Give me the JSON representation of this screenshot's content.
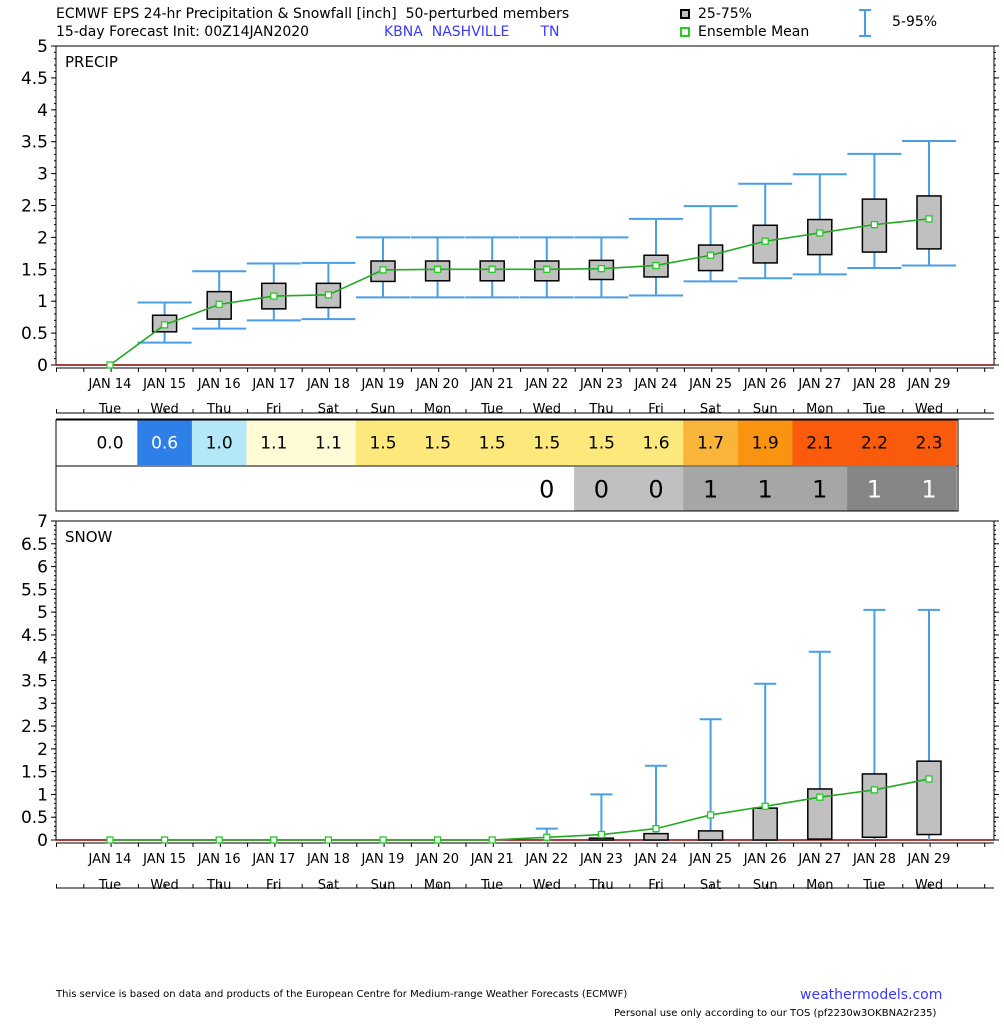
{
  "header": {
    "line1": "ECMWF EPS 24-hr Precipitation & Snowfall [inch]  50-perturbed members",
    "line2_prefix": "15-day Forecast Init: 00Z14JAN2020",
    "station": "KBNA  NASHVILLE       TN",
    "legend_box_label": "25-75%",
    "legend_mean_label": "Ensemble Mean",
    "legend_whisker_label": "5-95%"
  },
  "colors": {
    "whisker": "#4a9ee6",
    "mean": "#22aa22",
    "box_fill": "#c0c0c0",
    "box_stroke": "#000000"
  },
  "dates": [
    "JAN 14",
    "JAN 15",
    "JAN 16",
    "JAN 17",
    "JAN 18",
    "JAN 19",
    "JAN 20",
    "JAN 21",
    "JAN 22",
    "JAN 23",
    "JAN 24",
    "JAN 25",
    "JAN 26",
    "JAN 27",
    "JAN 28",
    "JAN 29"
  ],
  "days": [
    "Tue",
    "Wed",
    "Thu",
    "Fri",
    "Sat",
    "Sun",
    "Mon",
    "Tue",
    "Wed",
    "Thu",
    "Fri",
    "Sat",
    "Sun",
    "Mon",
    "Tue",
    "Wed"
  ],
  "chart_data": [
    {
      "type": "box",
      "title": "PRECIP",
      "categories": [
        "JAN 14",
        "JAN 15",
        "JAN 16",
        "JAN 17",
        "JAN 18",
        "JAN 19",
        "JAN 20",
        "JAN 21",
        "JAN 22",
        "JAN 23",
        "JAN 24",
        "JAN 25",
        "JAN 26",
        "JAN 27",
        "JAN 28",
        "JAN 29"
      ],
      "ylim": [
        0,
        5
      ],
      "yticks": [
        "0",
        "0.5",
        "1",
        "1.5",
        "2",
        "2.5",
        "3",
        "3.5",
        "4",
        "4.5",
        "5"
      ],
      "p05": [
        0.0,
        0.35,
        0.57,
        0.7,
        0.72,
        1.06,
        1.06,
        1.06,
        1.06,
        1.06,
        1.09,
        1.31,
        1.36,
        1.42,
        1.52,
        1.56
      ],
      "p25": [
        0.0,
        0.52,
        0.72,
        0.88,
        0.9,
        1.31,
        1.32,
        1.32,
        1.32,
        1.34,
        1.38,
        1.48,
        1.6,
        1.73,
        1.77,
        1.82
      ],
      "p75": [
        0.0,
        0.78,
        1.15,
        1.28,
        1.28,
        1.63,
        1.63,
        1.63,
        1.63,
        1.64,
        1.72,
        1.88,
        2.19,
        2.28,
        2.6,
        2.65
      ],
      "p95": [
        0.0,
        0.98,
        1.47,
        1.59,
        1.6,
        2.0,
        2.0,
        2.0,
        2.0,
        2.0,
        2.29,
        2.49,
        2.84,
        2.99,
        3.31,
        3.51
      ],
      "mean": [
        0.0,
        0.63,
        0.95,
        1.08,
        1.1,
        1.49,
        1.5,
        1.5,
        1.5,
        1.51,
        1.56,
        1.72,
        1.94,
        2.07,
        2.2,
        2.29
      ]
    },
    {
      "type": "box",
      "title": "SNOW",
      "categories": [
        "JAN 14",
        "JAN 15",
        "JAN 16",
        "JAN 17",
        "JAN 18",
        "JAN 19",
        "JAN 20",
        "JAN 21",
        "JAN 22",
        "JAN 23",
        "JAN 24",
        "JAN 25",
        "JAN 26",
        "JAN 27",
        "JAN 28",
        "JAN 29"
      ],
      "ylim": [
        0,
        7
      ],
      "yticks": [
        "0",
        "0.5",
        "1",
        "1.5",
        "2",
        "2.5",
        "3",
        "3.5",
        "4",
        "4.5",
        "5",
        "5.5",
        "6",
        "6.5",
        "7"
      ],
      "p05": [
        0,
        0,
        0,
        0,
        0,
        0,
        0,
        0,
        0,
        0,
        0,
        0,
        0,
        0,
        0,
        0
      ],
      "p25": [
        0,
        0,
        0,
        0,
        0,
        0,
        0,
        0,
        0,
        0,
        0,
        0,
        0,
        0.02,
        0.06,
        0.12
      ],
      "p75": [
        0,
        0,
        0,
        0,
        0,
        0,
        0,
        0,
        0,
        0.04,
        0.14,
        0.2,
        0.7,
        1.12,
        1.45,
        1.73
      ],
      "p95": [
        0,
        0,
        0,
        0,
        0,
        0,
        0,
        0,
        0.25,
        1.0,
        1.63,
        2.65,
        3.43,
        4.13,
        5.05,
        5.05
      ],
      "mean": [
        0,
        0,
        0,
        0,
        0,
        0,
        0,
        0,
        0.06,
        0.12,
        0.25,
        0.55,
        0.74,
        0.94,
        1.1,
        1.34
      ]
    }
  ],
  "precip_row": {
    "values": [
      "0.0",
      "0.6",
      "1.0",
      "1.1",
      "1.1",
      "1.5",
      "1.5",
      "1.5",
      "1.5",
      "1.5",
      "1.6",
      "1.7",
      "1.9",
      "2.1",
      "2.2",
      "2.3"
    ],
    "bg": [
      "#ffffff",
      "#2e7fe8",
      "#b4e8f8",
      "#fffbd6",
      "#fffbd6",
      "#fde87c",
      "#fde87c",
      "#fde87c",
      "#fde87c",
      "#fde87c",
      "#fde87c",
      "#f9b53a",
      "#f99310",
      "#f95a0c",
      "#f95a0c",
      "#f95a0c"
    ],
    "fg": [
      "#000000",
      "#ffffff",
      "#000000",
      "#000000",
      "#000000",
      "#000000",
      "#000000",
      "#000000",
      "#000000",
      "#000000",
      "#000000",
      "#000000",
      "#000000",
      "#000000",
      "#000000",
      "#000000"
    ]
  },
  "snow_row": {
    "values": [
      "",
      "",
      "",
      "",
      "",
      "",
      "",
      "",
      "0",
      "0",
      "0",
      "1",
      "1",
      "1",
      "1",
      "1"
    ],
    "bg": [
      "#ffffff",
      "#ffffff",
      "#ffffff",
      "#ffffff",
      "#ffffff",
      "#ffffff",
      "#ffffff",
      "#ffffff",
      "#ffffff",
      "#c0c0c0",
      "#c0c0c0",
      "#a6a6a6",
      "#a6a6a6",
      "#a6a6a6",
      "#868686",
      "#868686"
    ],
    "fg": [
      "#000000",
      "#000000",
      "#000000",
      "#000000",
      "#000000",
      "#000000",
      "#000000",
      "#000000",
      "#000000",
      "#000000",
      "#000000",
      "#000000",
      "#000000",
      "#000000",
      "#ffffff",
      "#ffffff"
    ]
  },
  "footer": {
    "note": "This service is based on data and products of the European Centre for Medium-range Weather Forecasts (ECMWF)",
    "link": "weathermodels.com",
    "tos": "Personal use only according to our TOS (pf2230w3OKBNA2r235)"
  }
}
